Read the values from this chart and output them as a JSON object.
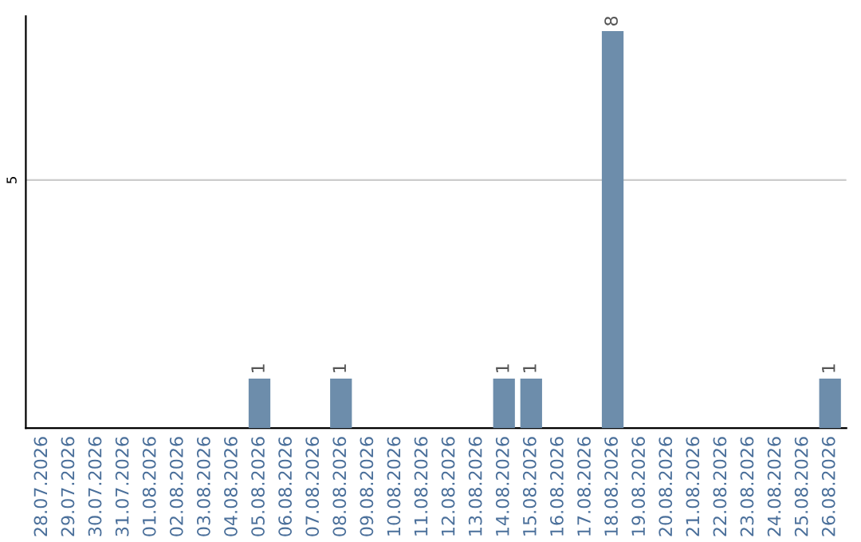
{
  "chart_data": {
    "type": "bar",
    "categories": [
      "28.07.2026",
      "29.07.2026",
      "30.07.2026",
      "31.07.2026",
      "01.08.2026",
      "02.08.2026",
      "03.08.2026",
      "04.08.2026",
      "05.08.2026",
      "06.08.2026",
      "07.08.2026",
      "08.08.2026",
      "09.08.2026",
      "10.08.2026",
      "11.08.2026",
      "12.08.2026",
      "13.08.2026",
      "14.08.2026",
      "15.08.2026",
      "16.08.2026",
      "17.08.2026",
      "18.08.2026",
      "19.08.2026",
      "20.08.2026",
      "21.08.2026",
      "22.08.2026",
      "23.08.2026",
      "24.08.2026",
      "25.08.2026",
      "26.08.2026"
    ],
    "series": [
      {
        "color": "#6d8dab",
        "values": [
          0,
          0,
          0,
          0,
          0,
          0,
          0,
          0,
          1,
          0,
          0,
          1,
          0,
          0,
          0,
          0,
          0,
          1,
          1,
          0,
          0,
          8,
          0,
          0,
          0,
          0,
          0,
          0,
          0,
          1
        ],
        "value_labels": [
          null,
          null,
          null,
          null,
          null,
          null,
          null,
          null,
          "1",
          null,
          null,
          "1",
          null,
          null,
          null,
          null,
          null,
          "1",
          "1",
          null,
          null,
          "8",
          null,
          null,
          null,
          null,
          null,
          null,
          null,
          "1"
        ]
      }
    ],
    "ylim": [
      0,
      8.3
    ],
    "yticks": [
      5
    ],
    "grid": "y"
  }
}
